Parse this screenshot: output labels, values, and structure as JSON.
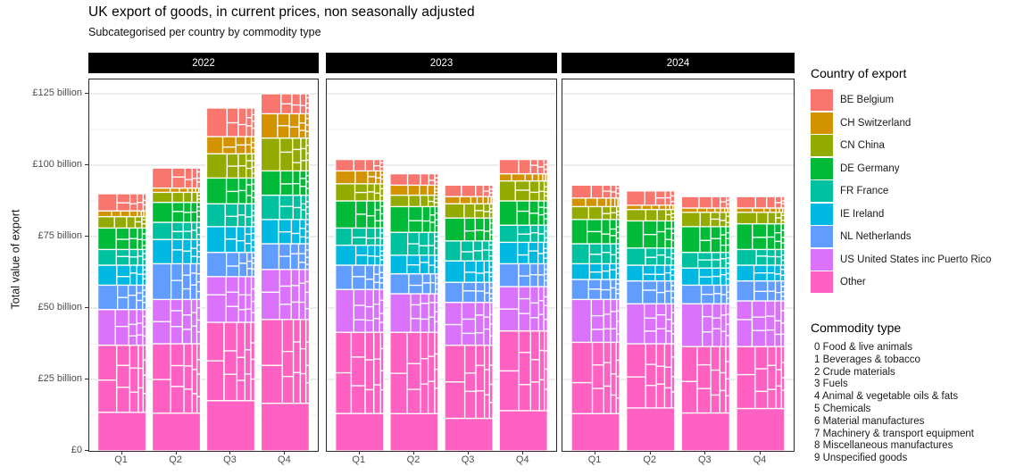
{
  "title": "UK export of goods, in current prices, non seasonally adjusted",
  "subtitle": "Subcategorised per country by commodity type",
  "y_axis": {
    "title": "Total value of export",
    "tick_labels": [
      "£0",
      "£25 billion",
      "£50 billion",
      "£75 billion",
      "£100 billion",
      "£125 billion"
    ],
    "tick_values": [
      0,
      25,
      50,
      75,
      100,
      125
    ]
  },
  "x_axis": {
    "labels": [
      "Q1",
      "Q2",
      "Q3",
      "Q4"
    ]
  },
  "facets": [
    "2022",
    "2023",
    "2024"
  ],
  "legend": {
    "title": "Country of export",
    "items": [
      {
        "label": "BE Belgium",
        "color": "#F8766D"
      },
      {
        "label": "CH Switzerland",
        "color": "#D39200"
      },
      {
        "label": "CN China",
        "color": "#93AA00"
      },
      {
        "label": "DE Germany",
        "color": "#00BA38"
      },
      {
        "label": "FR France",
        "color": "#00C19F"
      },
      {
        "label": "IE Ireland",
        "color": "#00B9E3"
      },
      {
        "label": "NL Netherlands",
        "color": "#619CFF"
      },
      {
        "label": "US United States inc Puerto Rico",
        "color": "#DB72FB"
      },
      {
        "label": "Other",
        "color": "#FF61C3"
      }
    ]
  },
  "commodity": {
    "title": "Commodity type",
    "items": [
      "0 Food & live animals",
      "1 Beverages & tobacco",
      "2 Crude materials",
      "3 Fuels",
      "4 Animal & vegetable oils & fats",
      "5 Chemicals",
      "6 Material manufactures",
      "7 Machinery & transport equipment",
      "8 Miscellaneous manufactures",
      "9 Unspecified goods"
    ]
  },
  "chart_data": {
    "type": "bar",
    "variant": "stacked bars faceted by year; each country segment subdivided into treemap-style commodity cells",
    "unit": "£ billion",
    "facets": [
      "2022",
      "2023",
      "2024"
    ],
    "categories": [
      "Q1",
      "Q2",
      "Q3",
      "Q4"
    ],
    "quarters": [
      "2022 Q1",
      "2022 Q2",
      "2022 Q3",
      "2022 Q4",
      "2023 Q1",
      "2023 Q2",
      "2023 Q3",
      "2023 Q4",
      "2024 Q1",
      "2024 Q2",
      "2024 Q3",
      "2024 Q4"
    ],
    "stack_order_bottom_to_top": [
      "Other",
      "US United States inc Puerto Rico",
      "NL Netherlands",
      "IE Ireland",
      "FR France",
      "DE Germany",
      "CN China",
      "CH Switzerland",
      "BE Belgium"
    ],
    "series": [
      {
        "name": "BE Belgium",
        "color": "#F8766D",
        "values": [
          6,
          7,
          10,
          7,
          4,
          4,
          4,
          5,
          4.5,
          5,
          4,
          4
        ]
      },
      {
        "name": "CH Switzerland",
        "color": "#D39200",
        "values": [
          2,
          1.5,
          6,
          8.5,
          4.5,
          3.5,
          2.5,
          2.5,
          3,
          1.5,
          1.5,
          1.5
        ]
      },
      {
        "name": "CN China",
        "color": "#93AA00",
        "values": [
          4,
          3.5,
          8.5,
          11.5,
          6,
          4,
          5,
          7,
          4.5,
          4,
          5,
          4
        ]
      },
      {
        "name": "DE Germany",
        "color": "#00BA38",
        "values": [
          7.5,
          7,
          9,
          8.5,
          9.5,
          9,
          8,
          8.5,
          8.5,
          9.5,
          9,
          9
        ]
      },
      {
        "name": "FR France",
        "color": "#00C19F",
        "values": [
          5.5,
          6,
          8,
          8.5,
          6,
          8,
          7,
          6,
          7,
          6,
          5.5,
          5.5
        ]
      },
      {
        "name": "IE Ireland",
        "color": "#00B9E3",
        "values": [
          7,
          8.5,
          9,
          8.5,
          7,
          6.5,
          7.5,
          7.5,
          5.5,
          5.5,
          6,
          5.5
        ]
      },
      {
        "name": "NL Netherlands",
        "color": "#619CFF",
        "values": [
          8.5,
          12.5,
          8.5,
          9,
          8.5,
          7,
          7,
          8,
          7,
          8,
          6.5,
          7
        ]
      },
      {
        "name": "US United States inc Puerto Rico",
        "color": "#DB72FB",
        "values": [
          12.5,
          15.5,
          16,
          17.5,
          15,
          13.5,
          15,
          15.5,
          15,
          14,
          15,
          16
        ]
      },
      {
        "name": "Other",
        "color": "#FF61C3",
        "values": [
          37,
          37.5,
          45,
          46,
          41.5,
          41.5,
          37,
          42,
          38,
          37.5,
          36.5,
          36.5
        ]
      }
    ],
    "totals": [
      90,
      99,
      120,
      125,
      102,
      97,
      93,
      102,
      93,
      91,
      89,
      89
    ],
    "ylim": [
      0,
      130
    ],
    "yticks": [
      0,
      25,
      50,
      75,
      100,
      125
    ],
    "grid": "major gridlines every 25, minor every 12.5",
    "legend_position": "right"
  }
}
